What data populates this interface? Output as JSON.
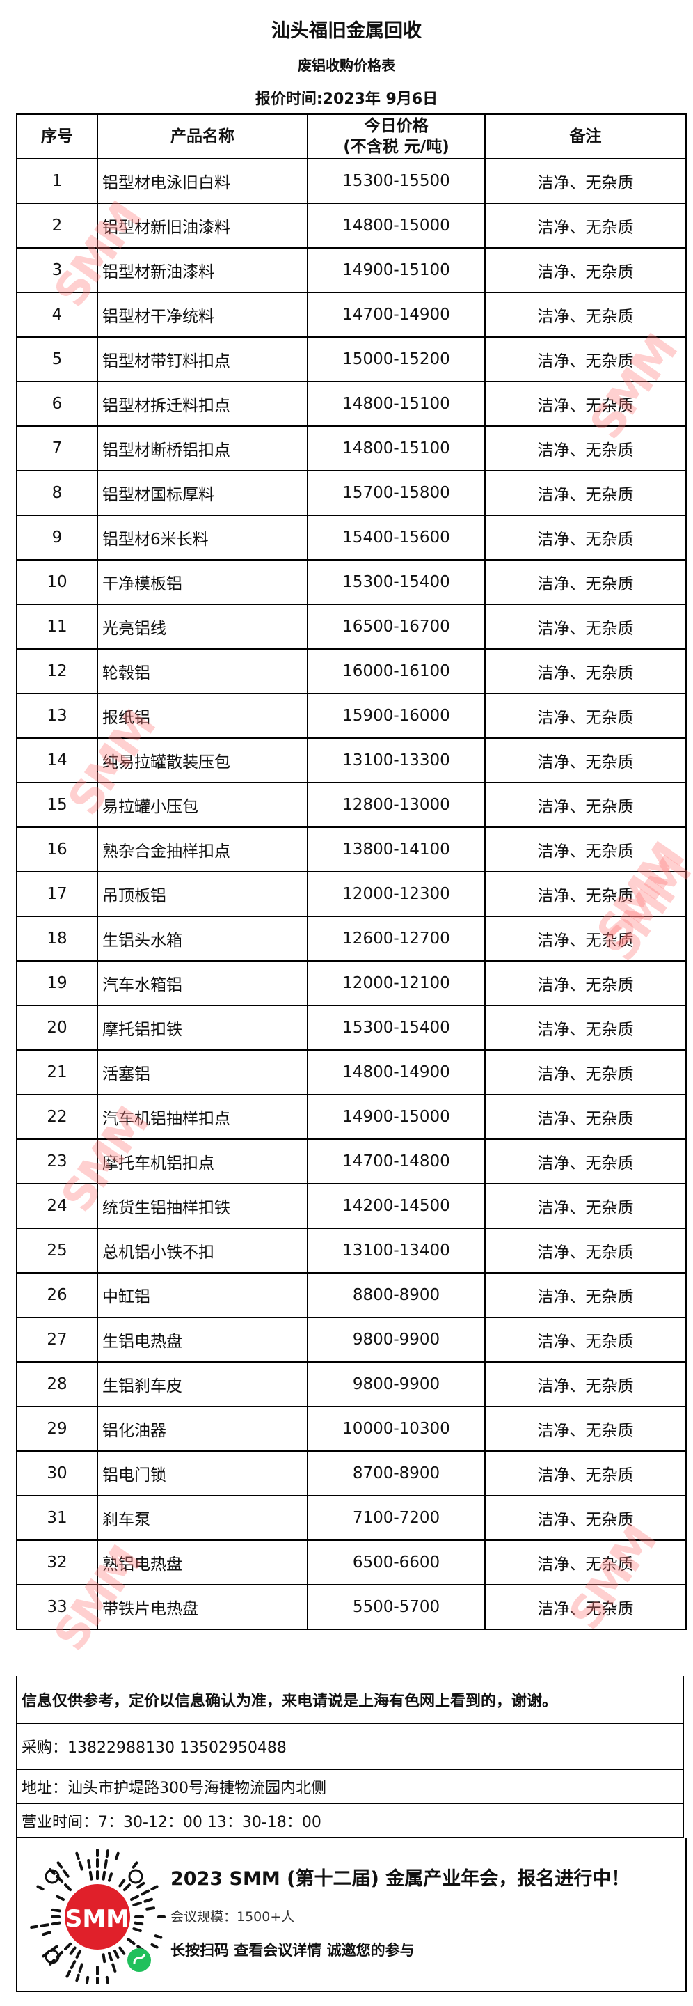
{
  "header": {
    "title": "汕头福旧金属回收",
    "subtitle": "废铝收购价格表",
    "quote_date": "报价时间:2023年 9月6日"
  },
  "table": {
    "columns": [
      "序号",
      "产品名称",
      "今日价格",
      "(不含税 元/吨)",
      "备注"
    ],
    "rows": [
      {
        "no": "1",
        "name": "铝型材电泳旧白料",
        "price": "15300-15500",
        "note": "洁净、无杂质"
      },
      {
        "no": "2",
        "name": "铝型材新旧油漆料",
        "price": "14800-15000",
        "note": "洁净、无杂质"
      },
      {
        "no": "3",
        "name": "铝型材新油漆料",
        "price": "14900-15100",
        "note": "洁净、无杂质"
      },
      {
        "no": "4",
        "name": "铝型材干净统料",
        "price": "14700-14900",
        "note": "洁净、无杂质"
      },
      {
        "no": "5",
        "name": "铝型材带钉料扣点",
        "price": "15000-15200",
        "note": "洁净、无杂质"
      },
      {
        "no": "6",
        "name": "铝型材拆迁料扣点",
        "price": "14800-15100",
        "note": "洁净、无杂质"
      },
      {
        "no": "7",
        "name": "铝型材断桥铝扣点",
        "price": "14800-15100",
        "note": "洁净、无杂质"
      },
      {
        "no": "8",
        "name": "铝型材国标厚料",
        "price": "15700-15800",
        "note": "洁净、无杂质"
      },
      {
        "no": "9",
        "name": "铝型材6米长料",
        "price": "15400-15600",
        "note": "洁净、无杂质"
      },
      {
        "no": "10",
        "name": "干净模板铝",
        "price": "15300-15400",
        "note": "洁净、无杂质"
      },
      {
        "no": "11",
        "name": "光亮铝线",
        "price": "16500-16700",
        "note": "洁净、无杂质"
      },
      {
        "no": "12",
        "name": "轮毂铝",
        "price": "16000-16100",
        "note": "洁净、无杂质"
      },
      {
        "no": "13",
        "name": "报纸铝",
        "price": "15900-16000",
        "note": "洁净、无杂质"
      },
      {
        "no": "14",
        "name": "纯易拉罐散装压包",
        "price": "13100-13300",
        "note": "洁净、无杂质"
      },
      {
        "no": "15",
        "name": "易拉罐小压包",
        "price": "12800-13000",
        "note": "洁净、无杂质"
      },
      {
        "no": "16",
        "name": "熟杂合金抽样扣点",
        "price": "13800-14100",
        "note": "洁净、无杂质"
      },
      {
        "no": "17",
        "name": "吊顶板铝",
        "price": "12000-12300",
        "note": "洁净、无杂质"
      },
      {
        "no": "18",
        "name": "生铝头水箱",
        "price": "12600-12700",
        "note": "洁净、无杂质"
      },
      {
        "no": "19",
        "name": "汽车水箱铝",
        "price": "12000-12100",
        "note": "洁净、无杂质"
      },
      {
        "no": "20",
        "name": "摩托铝扣铁",
        "price": "15300-15400",
        "note": "洁净、无杂质"
      },
      {
        "no": "21",
        "name": "活塞铝",
        "price": "14800-14900",
        "note": "洁净、无杂质"
      },
      {
        "no": "22",
        "name": "汽车机铝抽样扣点",
        "price": "14900-15000",
        "note": "洁净、无杂质"
      },
      {
        "no": "23",
        "name": "摩托车机铝扣点",
        "price": "14700-14800",
        "note": "洁净、无杂质"
      },
      {
        "no": "24",
        "name": "统货生铝抽样扣铁",
        "price": "14200-14500",
        "note": "洁净、无杂质"
      },
      {
        "no": "25",
        "name": "总机铝小铁不扣",
        "price": "13100-13400",
        "note": "洁净、无杂质"
      },
      {
        "no": "26",
        "name": "中缸铝",
        "price": "8800-8900",
        "note": "洁净、无杂质"
      },
      {
        "no": "27",
        "name": "生铝电热盘",
        "price": "9800-9900",
        "note": "洁净、无杂质"
      },
      {
        "no": "28",
        "name": "生铝刹车皮",
        "price": "9800-9900",
        "note": "洁净、无杂质"
      },
      {
        "no": "29",
        "name": "铝化油器",
        "price": "10000-10300",
        "note": "洁净、无杂质"
      },
      {
        "no": "30",
        "name": "铝电门锁",
        "price": "8700-8900",
        "note": "洁净、无杂质"
      },
      {
        "no": "31",
        "name": "刹车泵",
        "price": "7100-7200",
        "note": "洁净、无杂质"
      },
      {
        "no": "32",
        "name": "熟铝电热盘",
        "price": "6500-6600",
        "note": "洁净、无杂质"
      },
      {
        "no": "33",
        "name": "带铁片电热盘",
        "price": "5500-5700",
        "note": "洁净、无杂质"
      }
    ]
  },
  "footer": {
    "disclaimer": "信息仅供参考，定价以信息确认为准，来电请说是上海有色网上看到的，谢谢。",
    "purchase": "采购：13822988130   13502950488",
    "address": "地址：汕头市护堤路300号海捷物流园内北侧",
    "hours": "营业时间：7：30-12：00   13：30-18：00"
  },
  "promo": {
    "headline": "2023 SMM (第十二届) 金属产业年会，报名进行中！",
    "scale": "会议规模：1500+人",
    "cta": "长按扫码  查看会议详情  诚邀您的参与",
    "qr_logo": "SMM",
    "qr_icon": "mini-program-icon"
  },
  "watermark": "SMM",
  "colors": {
    "brand_red": "#e0202a",
    "watermark": "#ff7878",
    "mini_program_green": "#20c05c"
  }
}
